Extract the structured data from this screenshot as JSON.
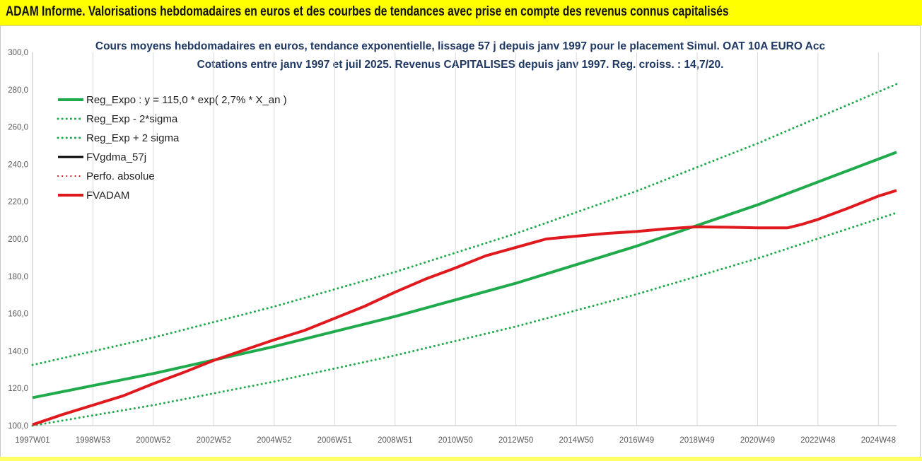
{
  "header": {
    "title": "ADAM Informe. Valorisations hebdomadaires en euros et des courbes de tendances avec prise en compte des revenus connus capitalisés"
  },
  "chart_data": {
    "type": "line",
    "title": "Cours moyens hebdomadaires en euros, tendance exponentielle, lissage 57 j depuis janv 1997 pour le placement Simul. OAT 10A EURO Acc",
    "subtitle": "Cotations entre janv 1997 et juil 2025. Revenus CAPITALISES depuis janv 1997. Reg. croiss. : 14,7/20.",
    "xlabel": "",
    "ylabel": "",
    "ylim": [
      100,
      300
    ],
    "yticks": [
      "100,0",
      "120,0",
      "140,0",
      "160,0",
      "180,0",
      "200,0",
      "220,0",
      "240,0",
      "260,0",
      "280,0",
      "300,0"
    ],
    "xlim": [
      1997.0,
      2025.6
    ],
    "x_tick_labels": [
      {
        "label": "1997W01",
        "x": 1997.0
      },
      {
        "label": "1998W53",
        "x": 1999.0
      },
      {
        "label": "2000W52",
        "x": 2001.0
      },
      {
        "label": "2002W52",
        "x": 2003.0
      },
      {
        "label": "2004W52",
        "x": 2005.0
      },
      {
        "label": "2006W51",
        "x": 2007.0
      },
      {
        "label": "2008W51",
        "x": 2009.0
      },
      {
        "label": "2010W50",
        "x": 2011.0
      },
      {
        "label": "2012W50",
        "x": 2013.0
      },
      {
        "label": "2014W50",
        "x": 2015.0
      },
      {
        "label": "2016W49",
        "x": 2017.0
      },
      {
        "label": "2018W49",
        "x": 2019.0
      },
      {
        "label": "2020W49",
        "x": 2021.0
      },
      {
        "label": "2022W48",
        "x": 2023.0
      },
      {
        "label": "2024W48",
        "x": 2025.0
      }
    ],
    "grid": {
      "vertical": true,
      "horizontal": false
    },
    "legend_position": "top-left",
    "series": [
      {
        "name": "Reg_Expo : y = 115,0 * exp( 2,7% * X_an )",
        "color": "#1faa4b",
        "style": "solid",
        "width": 4,
        "x": [
          1997.0,
          2001.0,
          2005.0,
          2009.0,
          2013.0,
          2017.0,
          2021.0,
          2025.6
        ],
        "y": [
          115.0,
          127.9,
          142.4,
          158.5,
          176.3,
          196.2,
          218.3,
          246.5
        ]
      },
      {
        "name": "Reg_Exp - 2*sigma",
        "color": "#1faa4b",
        "style": "dotted",
        "width": 3,
        "x": [
          1997.0,
          2001.0,
          2005.0,
          2009.0,
          2013.0,
          2017.0,
          2021.0,
          2025.6
        ],
        "y": [
          100.0,
          111.0,
          123.6,
          137.6,
          153.1,
          170.4,
          189.6,
          214.0
        ]
      },
      {
        "name": "Reg_Exp + 2 sigma",
        "color": "#1faa4b",
        "style": "dotted",
        "width": 3,
        "x": [
          1997.0,
          2001.0,
          2005.0,
          2009.0,
          2013.0,
          2017.0,
          2021.0,
          2025.6
        ],
        "y": [
          132.5,
          147.2,
          163.8,
          182.3,
          202.9,
          225.7,
          251.2,
          283.0
        ]
      },
      {
        "name": "FVgdma_57j",
        "color": "#000000",
        "style": "solid",
        "width": 3,
        "x": [],
        "y": []
      },
      {
        "name": "Perfo. absolue",
        "color": "#d00000",
        "style": "dotted",
        "width": 2,
        "x": [],
        "y": []
      },
      {
        "name": "FVADAM",
        "color": "#e0191e",
        "style": "solid",
        "width": 4,
        "x": [
          1997.0,
          1998.0,
          1999.0,
          2000.0,
          2001.0,
          2002.0,
          2003.0,
          2004.0,
          2005.0,
          2006.0,
          2007.0,
          2008.0,
          2009.0,
          2010.0,
          2011.0,
          2012.0,
          2013.0,
          2014.0,
          2015.0,
          2016.0,
          2017.0,
          2018.0,
          2019.0,
          2020.0,
          2021.0,
          2022.0,
          2022.5,
          2023.0,
          2024.0,
          2025.0,
          2025.6
        ],
        "y": [
          100.5,
          106.0,
          111.0,
          116.0,
          122.5,
          128.5,
          135.0,
          140.5,
          146.0,
          151.0,
          157.5,
          164.0,
          171.5,
          178.5,
          184.5,
          191.0,
          195.5,
          200.0,
          201.5,
          203.0,
          204.0,
          205.5,
          206.5,
          206.3,
          206.0,
          206.0,
          208.0,
          210.5,
          216.5,
          223.0,
          226.0
        ]
      }
    ]
  }
}
